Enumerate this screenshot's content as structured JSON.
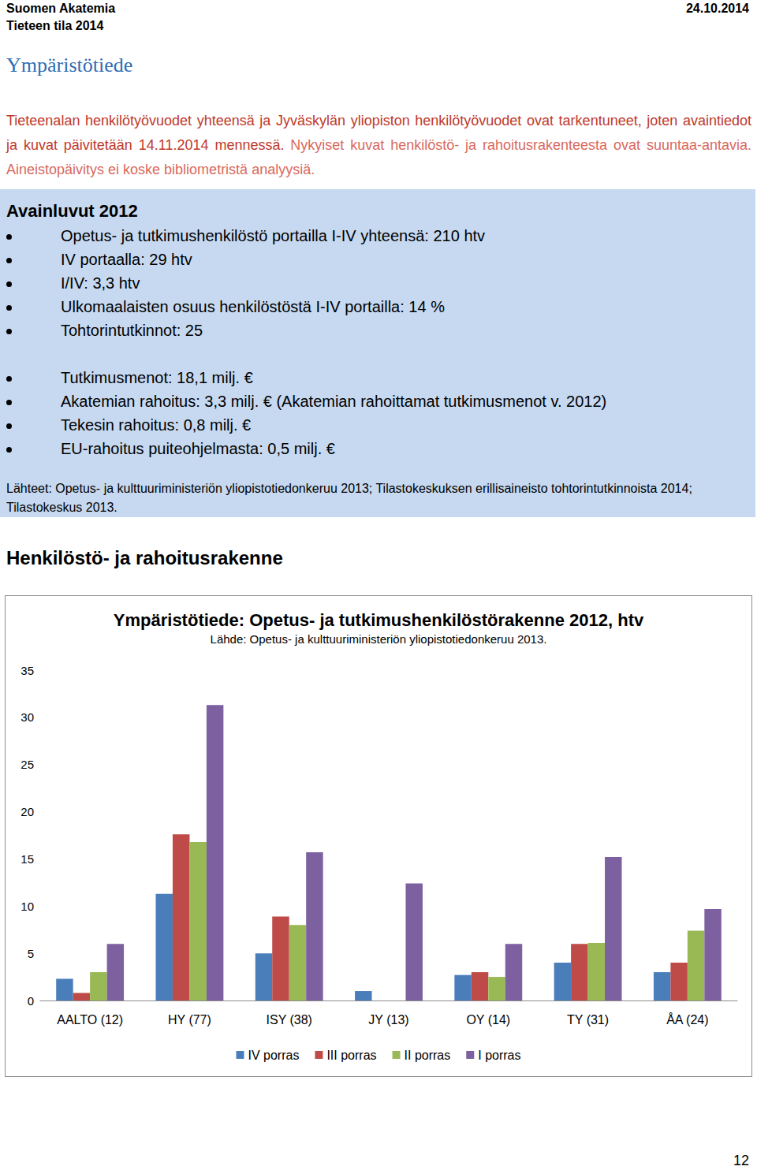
{
  "header": {
    "organization": "Suomen Akatemia",
    "date": "24.10.2014",
    "subtitle": "Tieteen tila 2014"
  },
  "title": "Ympäristötiede",
  "notice": [
    "Tieteenalan henkilötyövuodet yhteensä ja Jyväskylän yliopiston henkilötyövuodet ovat tarkentuneet, joten avaintiedot ja kuvat päivitetään 14.11.2014 mennessä.",
    "Nykyiset kuvat henkilöstö- ja rahoitusrakenteesta ovat suuntaa-antavia. Aineistopäivitys ei koske bibliometristä analyysiä."
  ],
  "key_figures": {
    "title": "Avainluvut 2012",
    "groups": [
      [
        "Opetus- ja tutkimushenkilöstö portailla I-IV yhteensä: 210 htv",
        "IV portaalla: 29 htv",
        "I/IV: 3,3 htv",
        "Ulkomaalaisten osuus henkilöstöstä I-IV portailla: 14 %",
        "Tohtorintutkinnot: 25"
      ],
      [
        "Tutkimusmenot: 18,1 milj. €",
        "Akatemian rahoitus: 3,3 milj. € (Akatemian rahoittamat tutkimusmenot v. 2012)",
        "Tekesin rahoitus: 0,8 milj. €",
        "EU-rahoitus puiteohjelmasta: 0,5 milj. €"
      ]
    ],
    "sources": "Lähteet: Opetus- ja kulttuuriministeriön yliopistotiedonkeruu 2013; Tilastokeskuksen erillisaineisto tohtorintutkinnoista 2014; Tilastokeskus 2013."
  },
  "section_title": "Henkilöstö- ja rahoitusrakenne",
  "chart_data": {
    "type": "bar",
    "title": "Ympäristötiede: Opetus- ja tutkimushenkilöstörakenne 2012, htv",
    "subtitle": "Lähde: Opetus- ja kulttuuriministeriön yliopistotiedonkeruu 2013.",
    "categories": [
      "AALTO (12)",
      "HY (77)",
      "ISY (38)",
      "JY (13)",
      "OY (14)",
      "TY (31)",
      "ÅA (24)"
    ],
    "series": [
      {
        "name": "IV porras",
        "color": "#4a7ebb",
        "values": [
          2.3,
          11.3,
          5.0,
          1.0,
          2.7,
          4.0,
          3.0
        ]
      },
      {
        "name": "III porras",
        "color": "#be4b48",
        "values": [
          0.8,
          17.6,
          8.9,
          null,
          3.0,
          6.0,
          4.0
        ]
      },
      {
        "name": "II porras",
        "color": "#98b954",
        "values": [
          3.0,
          16.8,
          8.0,
          null,
          2.5,
          6.1,
          7.4
        ]
      },
      {
        "name": "I porras",
        "color": "#7d60a0",
        "values": [
          6.0,
          31.3,
          15.7,
          12.4,
          6.0,
          15.2,
          9.7
        ]
      }
    ],
    "ylim": [
      0,
      35
    ],
    "yticks": [
      0,
      5,
      10,
      15,
      20,
      25,
      30,
      35
    ],
    "grid": false,
    "legend": "bottom"
  },
  "page_number": "12"
}
